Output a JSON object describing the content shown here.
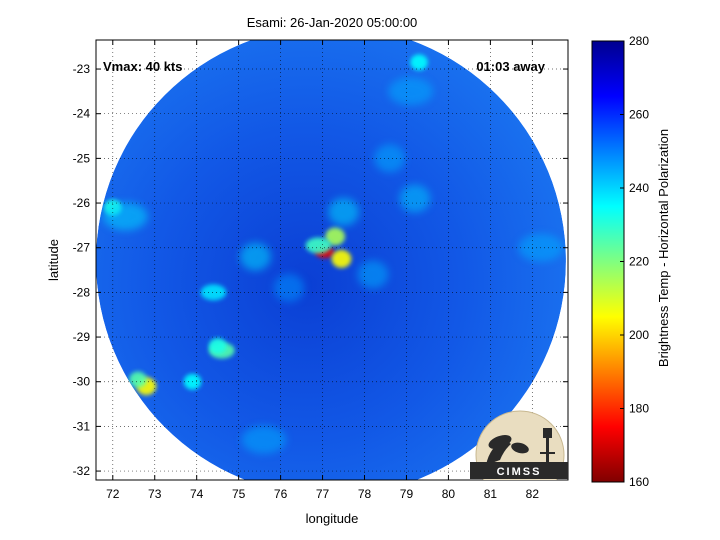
{
  "chart_data": {
    "type": "heatmap",
    "title": "Esami: 26-Jan-2020 05:00:00",
    "xlabel": "longitude",
    "ylabel": "latitude",
    "xlim": [
      71.6,
      82.85
    ],
    "ylim": [
      -32.2,
      -22.35
    ],
    "x_ticks": [
      "72",
      "73",
      "74",
      "75",
      "76",
      "77",
      "78",
      "79",
      "80",
      "81",
      "82"
    ],
    "y_ticks": [
      "-23",
      "-24",
      "-25",
      "-26",
      "-27",
      "-28",
      "-29",
      "-30",
      "-31",
      "-32"
    ],
    "grid": true,
    "colorbar": {
      "label": "Brightness Temp - Horizontal Polarization",
      "min": 160,
      "max": 280,
      "ticks": [
        "280",
        "260",
        "240",
        "220",
        "200",
        "180",
        "160"
      ]
    },
    "swath_center": {
      "lon": 77.2,
      "lat": -27.3
    },
    "annotations": {
      "vmax": "Vmax: 40 kts",
      "time_away": "01:03 away"
    },
    "features": [
      {
        "lon": 77.05,
        "lat": -27.1,
        "value": 172
      },
      {
        "lon": 77.3,
        "lat": -26.75,
        "value": 215
      },
      {
        "lon": 77.45,
        "lat": -27.25,
        "value": 205
      },
      {
        "lon": 76.9,
        "lat": -26.95,
        "value": 228
      },
      {
        "lon": 77.5,
        "lat": -26.2,
        "value": 240
      },
      {
        "lon": 72.0,
        "lat": -26.1,
        "value": 232
      },
      {
        "lon": 72.3,
        "lat": -26.3,
        "value": 240
      },
      {
        "lon": 72.8,
        "lat": -30.1,
        "value": 205
      },
      {
        "lon": 72.6,
        "lat": -29.95,
        "value": 225
      },
      {
        "lon": 74.6,
        "lat": -29.3,
        "value": 225
      },
      {
        "lon": 74.5,
        "lat": -29.2,
        "value": 232
      },
      {
        "lon": 73.9,
        "lat": -30.0,
        "value": 235
      },
      {
        "lon": 74.4,
        "lat": -28.0,
        "value": 238
      },
      {
        "lon": 75.4,
        "lat": -27.2,
        "value": 240
      },
      {
        "lon": 79.3,
        "lat": -22.85,
        "value": 235
      },
      {
        "lon": 79.1,
        "lat": -23.5,
        "value": 245
      },
      {
        "lon": 78.6,
        "lat": -25.0,
        "value": 245
      },
      {
        "lon": 79.2,
        "lat": -25.9,
        "value": 242
      },
      {
        "lon": 82.2,
        "lat": -27.0,
        "value": 245
      },
      {
        "lon": 78.2,
        "lat": -27.6,
        "value": 245
      },
      {
        "lon": 81.5,
        "lat": -31.2,
        "value": 248
      },
      {
        "lon": 75.6,
        "lat": -31.3,
        "value": 245
      },
      {
        "lon": 76.2,
        "lat": -27.9,
        "value": 248
      }
    ]
  },
  "colors": {
    "background": "#ffffff",
    "axes_bg": "#ffffff",
    "swath_base": "#1560e8"
  },
  "logo": {
    "text": "CIMSS"
  }
}
